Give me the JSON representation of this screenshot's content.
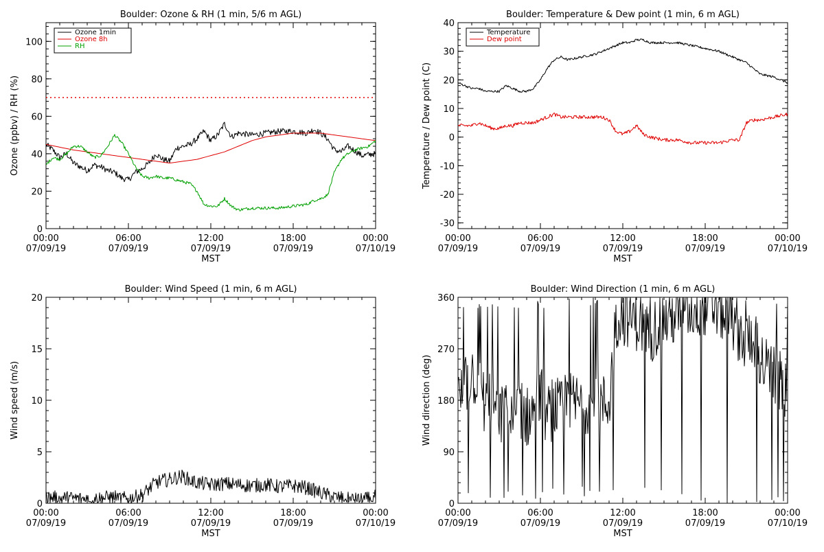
{
  "chart_data": [
    {
      "type": "line",
      "title": "Boulder: Ozone & RH (1 min, 5/6 m AGL)",
      "ylabel": "Ozone (ppbv) / RH (%)",
      "xlabel": "MST",
      "xlim": [
        0,
        24
      ],
      "ylim": [
        0,
        110
      ],
      "y_ticks": [
        "0",
        "20",
        "40",
        "60",
        "80",
        "100"
      ],
      "y_tick_values": [
        0,
        20,
        40,
        60,
        80,
        100
      ],
      "x_ticks": [
        {
          "time": "00:00",
          "date": "07/09/19"
        },
        {
          "time": "06:00",
          "date": "07/09/19"
        },
        {
          "time": "12:00",
          "date": "07/09/19"
        },
        {
          "time": "18:00",
          "date": "07/09/19"
        },
        {
          "time": "00:00",
          "date": "07/10/19"
        }
      ],
      "legend": {
        "placement": "top-left",
        "entries": [
          {
            "label": "Ozone 1min",
            "color": "#000000"
          },
          {
            "label": "Ozone 8h",
            "color": "#e00000"
          },
          {
            "label": "RH",
            "color": "#00a000"
          }
        ]
      },
      "reference_line": {
        "y": 70,
        "color": "#e00000",
        "style": "dotted"
      },
      "series": [
        {
          "color": "#000000",
          "noise": 1.6,
          "x": [
            0,
            0.5,
            1,
            1.5,
            2,
            2.5,
            3,
            3.5,
            4,
            4.5,
            5,
            5.5,
            6,
            6.5,
            7,
            7.5,
            8,
            8.5,
            9,
            9.5,
            10,
            10.5,
            11,
            11.5,
            12,
            12.5,
            13,
            13.5,
            14,
            15,
            16,
            17,
            18,
            19,
            19.5,
            20,
            20.5,
            21,
            21.5,
            22,
            23,
            24
          ],
          "y": [
            45,
            42,
            38,
            40,
            35,
            33,
            31,
            34,
            33,
            31,
            30,
            27,
            26,
            30,
            32,
            35,
            40,
            37,
            36,
            43,
            44,
            45,
            48,
            52,
            47,
            50,
            56,
            49,
            51,
            50,
            51,
            52,
            52,
            51,
            53,
            51,
            48,
            42,
            41,
            44,
            39,
            40
          ]
        },
        {
          "color": "#e00000",
          "noise": 0,
          "x": [
            0,
            2,
            4,
            6,
            8,
            9,
            10,
            11,
            12,
            13,
            14,
            15,
            16,
            17,
            18,
            19,
            20,
            21,
            22,
            23,
            24
          ],
          "y": [
            45,
            42,
            40,
            38,
            36,
            35,
            36,
            37,
            39,
            41,
            44,
            47,
            49,
            50,
            51,
            51,
            51,
            50,
            49,
            48,
            47
          ]
        },
        {
          "color": "#00a000",
          "noise": 0.8,
          "x": [
            0,
            0.5,
            1,
            1.5,
            2,
            2.5,
            3,
            3.5,
            4,
            4.5,
            5,
            5.5,
            6,
            6.5,
            7,
            7.5,
            8,
            8.5,
            9,
            9.5,
            10,
            10.5,
            11,
            11.5,
            12,
            12.5,
            13,
            13.5,
            14,
            15,
            16,
            17,
            18,
            19,
            19.5,
            20,
            20.5,
            21,
            21.5,
            22,
            22.5,
            23,
            23.5,
            24
          ],
          "y": [
            34,
            38,
            37,
            40,
            44,
            44,
            41,
            38,
            39,
            44,
            50,
            46,
            40,
            33,
            28,
            27,
            28,
            27,
            27,
            26,
            25,
            24,
            20,
            13,
            12,
            12,
            16,
            12,
            10,
            11,
            11,
            11,
            12,
            13,
            15,
            16,
            18,
            30,
            37,
            40,
            42,
            43,
            44,
            47
          ]
        }
      ]
    },
    {
      "type": "line",
      "title": "Boulder: Temperature & Dew point (1 min, 6 m AGL)",
      "ylabel": "Temperature / Dew point (C)",
      "xlabel": "MST",
      "xlim": [
        0,
        24
      ],
      "ylim": [
        -32,
        40
      ],
      "y_ticks": [
        "-30",
        "-20",
        "-10",
        "0",
        "10",
        "20",
        "30",
        "40"
      ],
      "y_tick_values": [
        -30,
        -20,
        -10,
        0,
        10,
        20,
        30,
        40
      ],
      "x_ticks": [
        {
          "time": "00:00",
          "date": "07/09/19"
        },
        {
          "time": "06:00",
          "date": "07/09/19"
        },
        {
          "time": "12:00",
          "date": "07/09/19"
        },
        {
          "time": "18:00",
          "date": "07/09/19"
        },
        {
          "time": "00:00",
          "date": "07/10/19"
        }
      ],
      "legend": {
        "placement": "top-left",
        "entries": [
          {
            "label": "Temperature",
            "color": "#000000"
          },
          {
            "label": "Dew point",
            "color": "#e00000"
          }
        ]
      },
      "series": [
        {
          "color": "#000000",
          "noise": 0.4,
          "x": [
            0,
            0.5,
            1,
            1.5,
            2,
            2.5,
            3,
            3.5,
            4,
            4.5,
            5,
            5.5,
            6,
            6.5,
            7,
            7.5,
            8,
            9,
            10,
            11,
            12,
            12.5,
            13,
            13.5,
            14,
            15,
            16,
            17,
            18,
            19,
            20,
            21,
            21.5,
            22,
            23,
            24
          ],
          "y": [
            19,
            18,
            17,
            17,
            16,
            16,
            16,
            18,
            17,
            16,
            16,
            17,
            20,
            24,
            27,
            28,
            27,
            28,
            29,
            31,
            33,
            33,
            34,
            34,
            33,
            33,
            33,
            32,
            31,
            30,
            28,
            26,
            24,
            22,
            21,
            19
          ]
        },
        {
          "color": "#e00000",
          "noise": 0.6,
          "x": [
            0,
            0.5,
            1,
            1.5,
            2,
            2.5,
            3,
            3.5,
            4,
            4.5,
            5,
            5.5,
            6,
            6.5,
            7,
            7.5,
            8,
            9,
            10,
            10.5,
            11,
            11.5,
            12,
            12.5,
            13,
            13.5,
            14,
            15,
            16,
            17,
            18,
            19,
            20,
            20.5,
            21,
            21.5,
            22,
            23,
            24
          ],
          "y": [
            4,
            4,
            4,
            5,
            4,
            3,
            3,
            4,
            4,
            5,
            5,
            5,
            6,
            7,
            8,
            7,
            7,
            7,
            7,
            7,
            6,
            2,
            1,
            2,
            4,
            1,
            0,
            -1,
            -1,
            -2,
            -2,
            -2,
            -1,
            -1,
            5,
            6,
            6,
            7,
            8
          ]
        }
      ]
    },
    {
      "type": "line",
      "title": "Boulder: Wind Speed (1 min, 6 m AGL)",
      "ylabel": "Wind speed (m/s)",
      "xlabel": "MST",
      "xlim": [
        0,
        24
      ],
      "ylim": [
        0,
        20
      ],
      "y_ticks": [
        "0",
        "5",
        "10",
        "15",
        "20"
      ],
      "y_tick_values": [
        0,
        5,
        10,
        15,
        20
      ],
      "x_ticks": [
        {
          "time": "00:00",
          "date": "07/09/19"
        },
        {
          "time": "06:00",
          "date": "07/09/19"
        },
        {
          "time": "12:00",
          "date": "07/09/19"
        },
        {
          "time": "18:00",
          "date": "07/09/19"
        },
        {
          "time": "00:00",
          "date": "07/10/19"
        }
      ],
      "series": [
        {
          "color": "#000000",
          "noise": 0.7,
          "x": [
            0,
            1,
            2,
            3,
            4,
            5,
            6,
            7,
            7.5,
            8,
            8.5,
            9,
            9.5,
            10,
            10.5,
            11,
            12,
            13,
            14,
            15,
            16,
            17,
            18,
            19,
            20,
            21,
            22,
            23,
            24
          ],
          "y": [
            0.6,
            0.5,
            0.5,
            0.4,
            0.5,
            0.6,
            0.4,
            0.8,
            1.4,
            2,
            2.2,
            2.3,
            2.5,
            2.6,
            2.2,
            2,
            1.8,
            1.9,
            1.8,
            1.7,
            1.8,
            1.6,
            1.7,
            1.5,
            1,
            0.6,
            0.4,
            0.3,
            0.6
          ]
        }
      ]
    },
    {
      "type": "line",
      "title": "Boulder: Wind Direction (1 min, 6 m AGL)",
      "ylabel": "Wind direction (deg)",
      "xlabel": "MST",
      "xlim": [
        0,
        24
      ],
      "ylim": [
        0,
        360
      ],
      "y_ticks": [
        "0",
        "90",
        "180",
        "270",
        "360"
      ],
      "y_tick_values": [
        0,
        90,
        180,
        270,
        360
      ],
      "x_ticks": [
        {
          "time": "00:00",
          "date": "07/09/19"
        },
        {
          "time": "06:00",
          "date": "07/09/19"
        },
        {
          "time": "12:00",
          "date": "07/09/19"
        },
        {
          "time": "18:00",
          "date": "07/09/19"
        },
        {
          "time": "00:00",
          "date": "07/10/19"
        }
      ],
      "series": [
        {
          "color": "#000000",
          "noise": 55,
          "x": [
            0,
            0.5,
            1,
            1.5,
            2,
            2.5,
            3,
            3.5,
            4,
            4.5,
            5,
            5.5,
            6,
            6.5,
            7,
            7.5,
            8,
            9,
            10,
            10.5,
            11,
            11.5,
            12,
            13,
            14,
            15,
            16,
            17,
            18,
            19,
            20,
            21,
            21.5,
            22,
            23,
            24
          ],
          "y": [
            180,
            200,
            230,
            210,
            170,
            190,
            150,
            160,
            140,
            170,
            150,
            160,
            190,
            150,
            170,
            160,
            175,
            175,
            178,
            172,
            175,
            320,
            330,
            320,
            300,
            320,
            330,
            340,
            345,
            340,
            320,
            280,
            300,
            250,
            220,
            200
          ]
        }
      ]
    }
  ]
}
